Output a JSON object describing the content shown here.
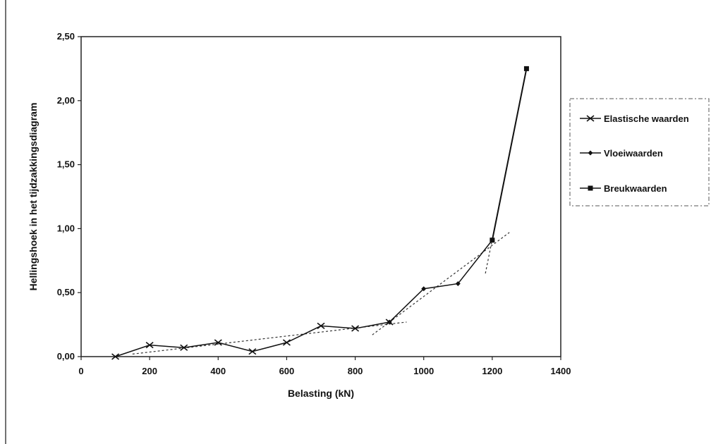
{
  "chart_data": {
    "type": "line",
    "xlabel": "Belasting (kN)",
    "ylabel": "Hellingshoek in het tijdzakkingsdiagram",
    "xlim": [
      0,
      1400
    ],
    "ylim": [
      0,
      2.5
    ],
    "x_ticks": [
      "0",
      "200",
      "400",
      "600",
      "800",
      "1000",
      "1200",
      "1400"
    ],
    "y_ticks": [
      "0,00",
      "0,50",
      "1,00",
      "1,50",
      "2,00",
      "2,50"
    ],
    "grid": false,
    "legend_position": "right",
    "series": [
      {
        "name": "Elastische waarden",
        "marker": "x",
        "points": [
          [
            100,
            0.0
          ],
          [
            200,
            0.09
          ],
          [
            300,
            0.07
          ],
          [
            400,
            0.11
          ],
          [
            500,
            0.04
          ],
          [
            600,
            0.11
          ],
          [
            700,
            0.24
          ],
          [
            800,
            0.22
          ],
          [
            900,
            0.27
          ]
        ]
      },
      {
        "name": "Vloeiwaarden",
        "marker": "diamond",
        "points": [
          [
            900,
            0.27
          ],
          [
            1000,
            0.53
          ],
          [
            1100,
            0.57
          ],
          [
            1200,
            0.91
          ]
        ]
      },
      {
        "name": "Breukwaarden",
        "marker": "square",
        "points": [
          [
            1200,
            0.91
          ],
          [
            1300,
            2.25
          ]
        ]
      }
    ],
    "trendlines": [
      {
        "points": [
          [
            150,
            0.02
          ],
          [
            950,
            0.27
          ]
        ]
      },
      {
        "points": [
          [
            850,
            0.17
          ],
          [
            1250,
            0.97
          ]
        ]
      },
      {
        "points": [
          [
            1180,
            0.65
          ],
          [
            1300,
            2.25
          ]
        ]
      }
    ]
  }
}
